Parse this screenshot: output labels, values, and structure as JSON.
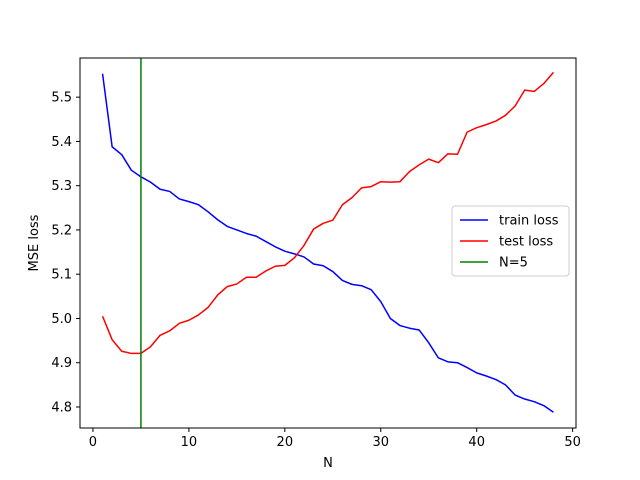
{
  "chart_data": {
    "type": "line",
    "title": "",
    "xlabel": "N",
    "ylabel": "MSE loss",
    "xlim": [
      -1.35,
      50.35
    ],
    "ylim": [
      4.7525,
      5.5885
    ],
    "xticks": [
      0,
      10,
      20,
      30,
      40,
      50
    ],
    "yticks": [
      4.8,
      4.9,
      5.0,
      5.1,
      5.2,
      5.3,
      5.4,
      5.5
    ],
    "ytick_format": "fixed1",
    "grid": false,
    "legend_position": "center-right",
    "x": [
      1,
      2,
      3,
      4,
      5,
      6,
      7,
      8,
      9,
      10,
      11,
      12,
      13,
      14,
      15,
      16,
      17,
      18,
      19,
      20,
      21,
      22,
      23,
      24,
      25,
      26,
      27,
      28,
      29,
      30,
      31,
      32,
      33,
      34,
      35,
      36,
      37,
      38,
      39,
      40,
      41,
      42,
      43,
      44,
      45,
      46,
      47,
      48
    ],
    "series": [
      {
        "name": "train loss",
        "color": "#0000ff",
        "values": [
          5.553,
          5.388,
          5.37,
          5.335,
          5.32,
          5.308,
          5.292,
          5.287,
          5.27,
          5.264,
          5.257,
          5.241,
          5.223,
          5.208,
          5.2,
          5.192,
          5.186,
          5.174,
          5.162,
          5.152,
          5.146,
          5.139,
          5.123,
          5.119,
          5.106,
          5.086,
          5.077,
          5.074,
          5.065,
          5.038,
          5.0,
          4.984,
          4.978,
          4.974,
          4.945,
          4.911,
          4.902,
          4.9,
          4.889,
          4.877,
          4.87,
          4.862,
          4.85,
          4.827,
          4.818,
          4.812,
          4.803,
          4.788
        ]
      },
      {
        "name": "test loss",
        "color": "#ff0000",
        "values": [
          5.005,
          4.952,
          4.926,
          4.921,
          4.921,
          4.936,
          4.962,
          4.972,
          4.989,
          4.996,
          5.008,
          5.025,
          5.053,
          5.072,
          5.078,
          5.093,
          5.093,
          5.107,
          5.118,
          5.12,
          5.137,
          5.165,
          5.202,
          5.215,
          5.222,
          5.257,
          5.273,
          5.295,
          5.298,
          5.309,
          5.308,
          5.309,
          5.332,
          5.347,
          5.36,
          5.352,
          5.372,
          5.371,
          5.421,
          5.431,
          5.438,
          5.446,
          5.459,
          5.48,
          5.516,
          5.513,
          5.531,
          5.556
        ]
      }
    ],
    "vlines": [
      {
        "name": "N=5",
        "x": 5,
        "color": "#008000"
      }
    ]
  }
}
